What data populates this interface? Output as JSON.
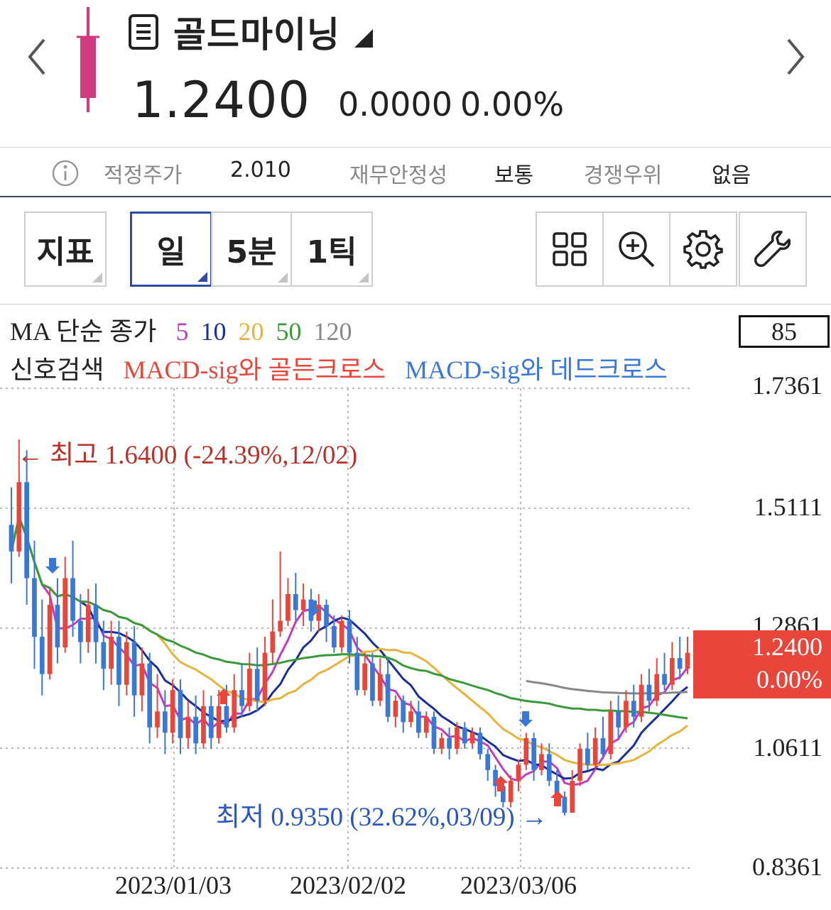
{
  "header": {
    "stock_name": "골드마이닝",
    "price": "1.2400",
    "change": "0.0000",
    "change_pct": "0.00%"
  },
  "info_bar": {
    "fair_price_label": "적정주가",
    "fair_price_value": "2.010",
    "stability_label": "재무안정성",
    "stability_value": "보통",
    "competitive_label": "경쟁우위",
    "competitive_value": "없음"
  },
  "toolbar": {
    "indicator_label": "지표",
    "day_label": "일",
    "min5_label": "5분",
    "tick_label": "1틱",
    "icons": [
      "grid-icon",
      "zoom-in-icon",
      "gear-icon",
      "wrench-icon"
    ]
  },
  "legend": {
    "ma_prefix": "MA 단순 종가",
    "ma_periods": [
      {
        "label": "5",
        "color": "#c23cc0"
      },
      {
        "label": "10",
        "color": "#1b2f9b"
      },
      {
        "label": "20",
        "color": "#e6b43c"
      },
      {
        "label": "50",
        "color": "#3a9a3a"
      },
      {
        "label": "120",
        "color": "#888888"
      }
    ],
    "signal_prefix": "신호검색",
    "golden_cross": "MACD-sig와 골든크로스",
    "dead_cross": "MACD-sig와 데드크로스"
  },
  "indicator_box": "85",
  "current_price_box": {
    "price": "1.2400",
    "pct": "0.00%",
    "color": "#e8463b"
  },
  "annotations": {
    "high": "← 최고 1.6400 (-24.39%,12/02)",
    "low": "최저 0.9350 (32.62%,03/09) →"
  },
  "chart_data": {
    "type": "candlestick",
    "y_ticks": [
      "1.7361",
      "1.5111",
      "1.2861",
      "1.0611",
      "0.8361"
    ],
    "ylim": [
      0.8361,
      1.7361
    ],
    "x_ticks": [
      "2023/01/03",
      "2023/02/02",
      "2023/03/06"
    ],
    "up_color": "#e8463b",
    "down_color": "#3a78d8",
    "high": 1.64,
    "low": 0.935,
    "last_close": 1.24,
    "candles": [
      [
        1.48,
        1.43,
        1.55,
        1.37
      ],
      [
        1.43,
        1.56,
        1.64,
        1.42
      ],
      [
        1.56,
        1.38,
        1.62,
        1.33
      ],
      [
        1.38,
        1.27,
        1.45,
        1.21
      ],
      [
        1.27,
        1.2,
        1.34,
        1.16
      ],
      [
        1.2,
        1.33,
        1.36,
        1.19
      ],
      [
        1.33,
        1.25,
        1.38,
        1.22
      ],
      [
        1.25,
        1.38,
        1.42,
        1.24
      ],
      [
        1.38,
        1.3,
        1.45,
        1.27
      ],
      [
        1.3,
        1.26,
        1.35,
        1.22
      ],
      [
        1.26,
        1.33,
        1.36,
        1.24
      ],
      [
        1.33,
        1.26,
        1.37,
        1.22
      ],
      [
        1.26,
        1.21,
        1.3,
        1.17
      ],
      [
        1.21,
        1.27,
        1.3,
        1.18
      ],
      [
        1.27,
        1.18,
        1.3,
        1.14
      ],
      [
        1.18,
        1.26,
        1.28,
        1.16
      ],
      [
        1.26,
        1.16,
        1.29,
        1.12
      ],
      [
        1.16,
        1.22,
        1.25,
        1.13
      ],
      [
        1.22,
        1.1,
        1.24,
        1.07
      ],
      [
        1.1,
        1.13,
        1.2,
        1.08
      ],
      [
        1.13,
        1.09,
        1.17,
        1.05
      ],
      [
        1.09,
        1.17,
        1.19,
        1.07
      ],
      [
        1.17,
        1.08,
        1.19,
        1.05
      ],
      [
        1.08,
        1.12,
        1.15,
        1.06
      ],
      [
        1.12,
        1.07,
        1.16,
        1.05
      ],
      [
        1.07,
        1.14,
        1.17,
        1.06
      ],
      [
        1.14,
        1.08,
        1.16,
        1.06
      ],
      [
        1.08,
        1.14,
        1.17,
        1.07
      ],
      [
        1.14,
        1.1,
        1.18,
        1.09
      ],
      [
        1.1,
        1.17,
        1.2,
        1.09
      ],
      [
        1.17,
        1.14,
        1.22,
        1.12
      ],
      [
        1.14,
        1.21,
        1.24,
        1.13
      ],
      [
        1.21,
        1.15,
        1.25,
        1.13
      ],
      [
        1.15,
        1.24,
        1.27,
        1.14
      ],
      [
        1.24,
        1.28,
        1.34,
        1.22
      ],
      [
        1.28,
        1.3,
        1.43,
        1.27
      ],
      [
        1.3,
        1.35,
        1.38,
        1.29
      ],
      [
        1.35,
        1.32,
        1.39,
        1.3
      ],
      [
        1.32,
        1.34,
        1.37,
        1.29
      ],
      [
        1.34,
        1.3,
        1.36,
        1.28
      ],
      [
        1.3,
        1.33,
        1.35,
        1.28
      ],
      [
        1.33,
        1.29,
        1.34,
        1.26
      ],
      [
        1.29,
        1.25,
        1.31,
        1.24
      ],
      [
        1.25,
        1.3,
        1.31,
        1.24
      ],
      [
        1.3,
        1.24,
        1.32,
        1.22
      ],
      [
        1.24,
        1.17,
        1.27,
        1.16
      ],
      [
        1.17,
        1.22,
        1.24,
        1.16
      ],
      [
        1.22,
        1.15,
        1.24,
        1.14
      ],
      [
        1.15,
        1.2,
        1.23,
        1.14
      ],
      [
        1.2,
        1.12,
        1.23,
        1.11
      ],
      [
        1.12,
        1.15,
        1.16,
        1.1
      ],
      [
        1.15,
        1.11,
        1.16,
        1.09
      ],
      [
        1.11,
        1.13,
        1.15,
        1.1
      ],
      [
        1.13,
        1.09,
        1.15,
        1.08
      ],
      [
        1.09,
        1.12,
        1.13,
        1.08
      ],
      [
        1.12,
        1.06,
        1.13,
        1.05
      ],
      [
        1.06,
        1.08,
        1.09,
        1.05
      ],
      [
        1.08,
        1.06,
        1.1,
        1.04
      ],
      [
        1.06,
        1.1,
        1.11,
        1.05
      ],
      [
        1.1,
        1.07,
        1.11,
        1.06
      ],
      [
        1.07,
        1.09,
        1.1,
        1.06
      ],
      [
        1.09,
        1.05,
        1.1,
        1.04
      ],
      [
        1.05,
        1.02,
        1.06,
        1.0
      ],
      [
        1.02,
        0.99,
        1.03,
        0.97
      ],
      [
        0.99,
        0.96,
        1.0,
        0.95
      ],
      [
        0.96,
        1.0,
        1.01,
        0.95
      ],
      [
        1.0,
        1.03,
        1.04,
        0.98
      ],
      [
        1.03,
        1.08,
        1.09,
        1.02
      ],
      [
        1.08,
        1.02,
        1.09,
        1.0
      ],
      [
        1.02,
        1.05,
        1.07,
        1.01
      ],
      [
        1.05,
        1.0,
        1.07,
        0.99
      ],
      [
        1.0,
        0.97,
        1.02,
        0.96
      ],
      [
        0.97,
        0.94,
        0.98,
        0.935
      ],
      [
        0.94,
        1.0,
        1.02,
        0.94
      ],
      [
        1.0,
        1.06,
        1.07,
        0.99
      ],
      [
        1.06,
        1.03,
        1.09,
        1.02
      ],
      [
        1.03,
        1.08,
        1.1,
        1.02
      ],
      [
        1.08,
        1.05,
        1.12,
        1.04
      ],
      [
        1.05,
        1.13,
        1.15,
        1.04
      ],
      [
        1.13,
        1.1,
        1.16,
        1.08
      ],
      [
        1.1,
        1.15,
        1.17,
        1.09
      ],
      [
        1.15,
        1.12,
        1.18,
        1.1
      ],
      [
        1.12,
        1.18,
        1.2,
        1.11
      ],
      [
        1.18,
        1.15,
        1.21,
        1.13
      ],
      [
        1.15,
        1.2,
        1.23,
        1.14
      ],
      [
        1.2,
        1.18,
        1.24,
        1.17
      ],
      [
        1.18,
        1.23,
        1.26,
        1.17
      ],
      [
        1.23,
        1.21,
        1.27,
        1.19
      ],
      [
        1.21,
        1.24,
        1.27,
        1.2
      ]
    ]
  }
}
